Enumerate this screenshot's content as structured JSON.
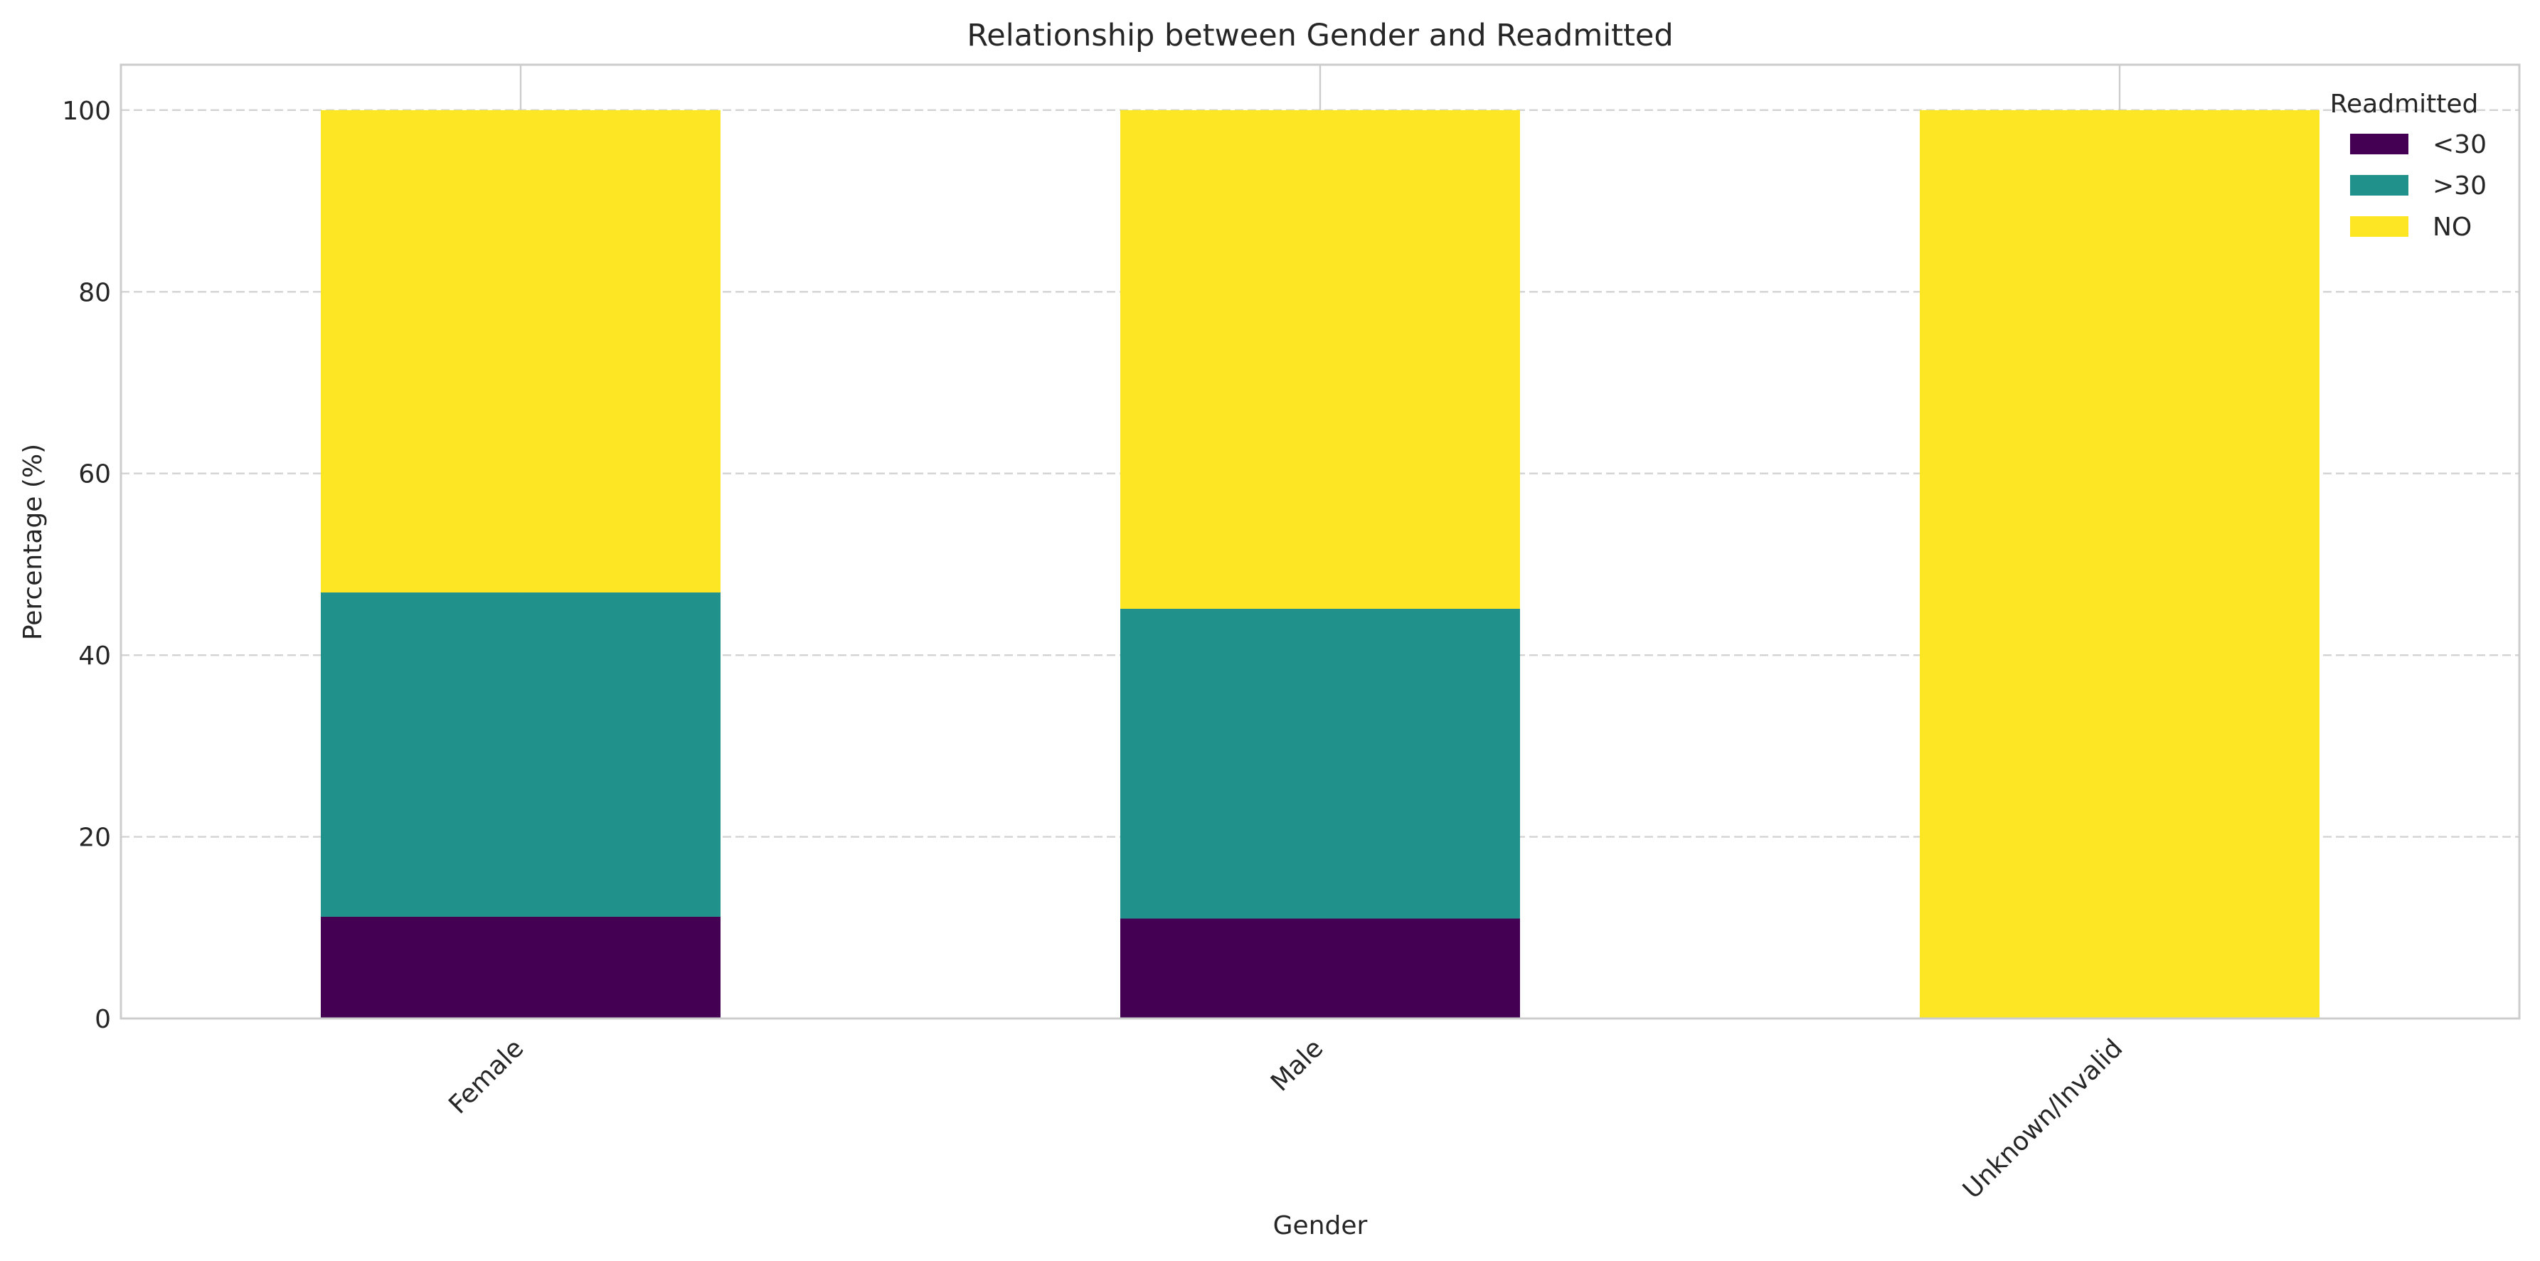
{
  "chart_data": {
    "type": "bar",
    "stacked": true,
    "title": "Relationship between Gender and Readmitted",
    "xlabel": "Gender",
    "ylabel": "Percentage (%)",
    "categories": [
      "Female",
      "Male",
      "Unknown/Invalid"
    ],
    "series": [
      {
        "name": "<30",
        "color": "#440154",
        "values": [
          11.2,
          11.0,
          0
        ]
      },
      {
        "name": ">30",
        "color": "#21918c",
        "values": [
          35.7,
          34.1,
          0
        ]
      },
      {
        "name": "NO",
        "color": "#fde725",
        "values": [
          53.1,
          54.9,
          100
        ]
      }
    ],
    "ylim": [
      0,
      105
    ],
    "yticks": [
      0,
      20,
      40,
      60,
      80,
      100
    ],
    "grid": true,
    "legend": {
      "title": "Readmitted",
      "position": "top-right"
    }
  }
}
